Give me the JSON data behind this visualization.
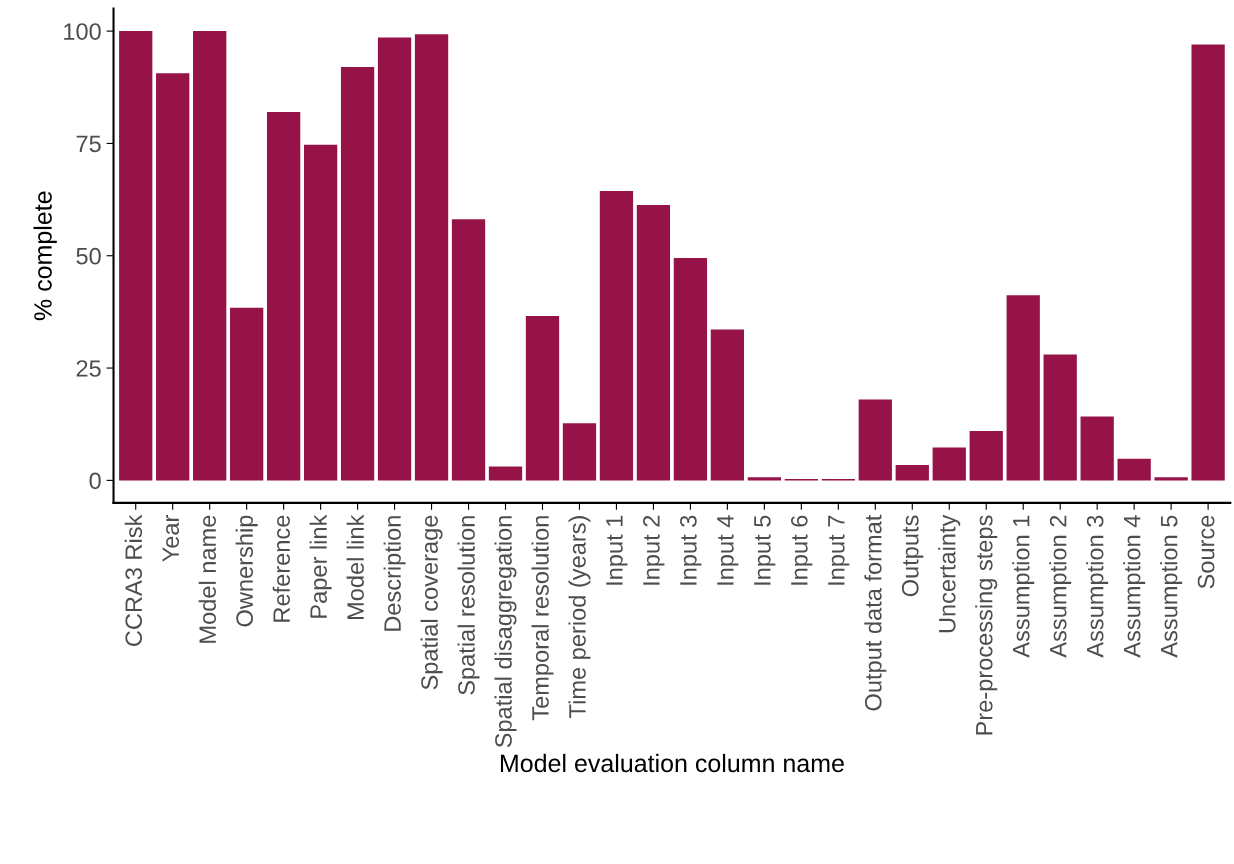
{
  "chart_data": {
    "type": "bar",
    "xlabel": "Model evaluation column name",
    "ylabel": "% complete",
    "categories": [
      "CCRA3 Risk",
      "Year",
      "Model name",
      "Ownership",
      "Reference",
      "Paper link",
      "Model link",
      "Description",
      "Spatial coverage",
      "Spatial resolution",
      "Spatial disaggregation",
      "Temporal resolution",
      "Time period (years)",
      "Input 1",
      "Input 2",
      "Input 3",
      "Input 4",
      "Input 5",
      "Input 6",
      "Input 7",
      "Output data format",
      "Outputs",
      "Uncertainty",
      "Pre-processing steps",
      "Assumption 1",
      "Assumption 2",
      "Assumption 3",
      "Assumption 4",
      "Assumption 5",
      "Source"
    ],
    "values": [
      100,
      90.6,
      100,
      38.4,
      82.0,
      74.7,
      92.0,
      98.6,
      99.3,
      58.1,
      3.1,
      36.6,
      12.7,
      64.4,
      61.3,
      49.5,
      33.6,
      0.7,
      0.3,
      0.3,
      18.0,
      3.4,
      7.3,
      11.0,
      41.2,
      28.0,
      14.2,
      4.8,
      0.7,
      97.0
    ],
    "color": "#961348",
    "ylim": [
      -5,
      105
    ],
    "yticks": [
      0,
      25,
      50,
      75,
      100
    ],
    "grid": false,
    "legend": false
  }
}
